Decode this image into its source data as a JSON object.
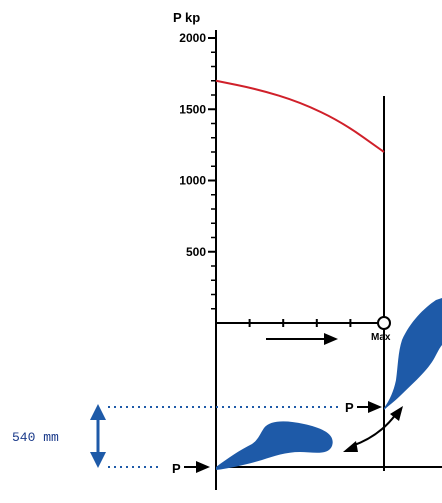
{
  "chart_data": {
    "type": "line",
    "ylabel": "P kp",
    "ylim": [
      0,
      2000
    ],
    "y_ticks": [
      500,
      1000,
      1500,
      2000
    ],
    "y_tick_labels": [
      "500",
      "1000",
      "1500",
      "2000"
    ],
    "series": [
      {
        "x": [
          0,
          0.25,
          0.5,
          0.75,
          1.0
        ],
        "y": [
          1700,
          1640,
          1550,
          1410,
          1200
        ]
      }
    ],
    "x_marker_label": "Max"
  },
  "annotations": {
    "force_label_top": "P",
    "force_label_bottom": "P",
    "dimension_label": "540 mm"
  },
  "colors": {
    "curve": "#d0202a",
    "shape_fill": "#1e5aa8",
    "dimension_arrow": "#1e5aa8",
    "dotted_line": "#1e5aa8",
    "axis": "#000000"
  }
}
